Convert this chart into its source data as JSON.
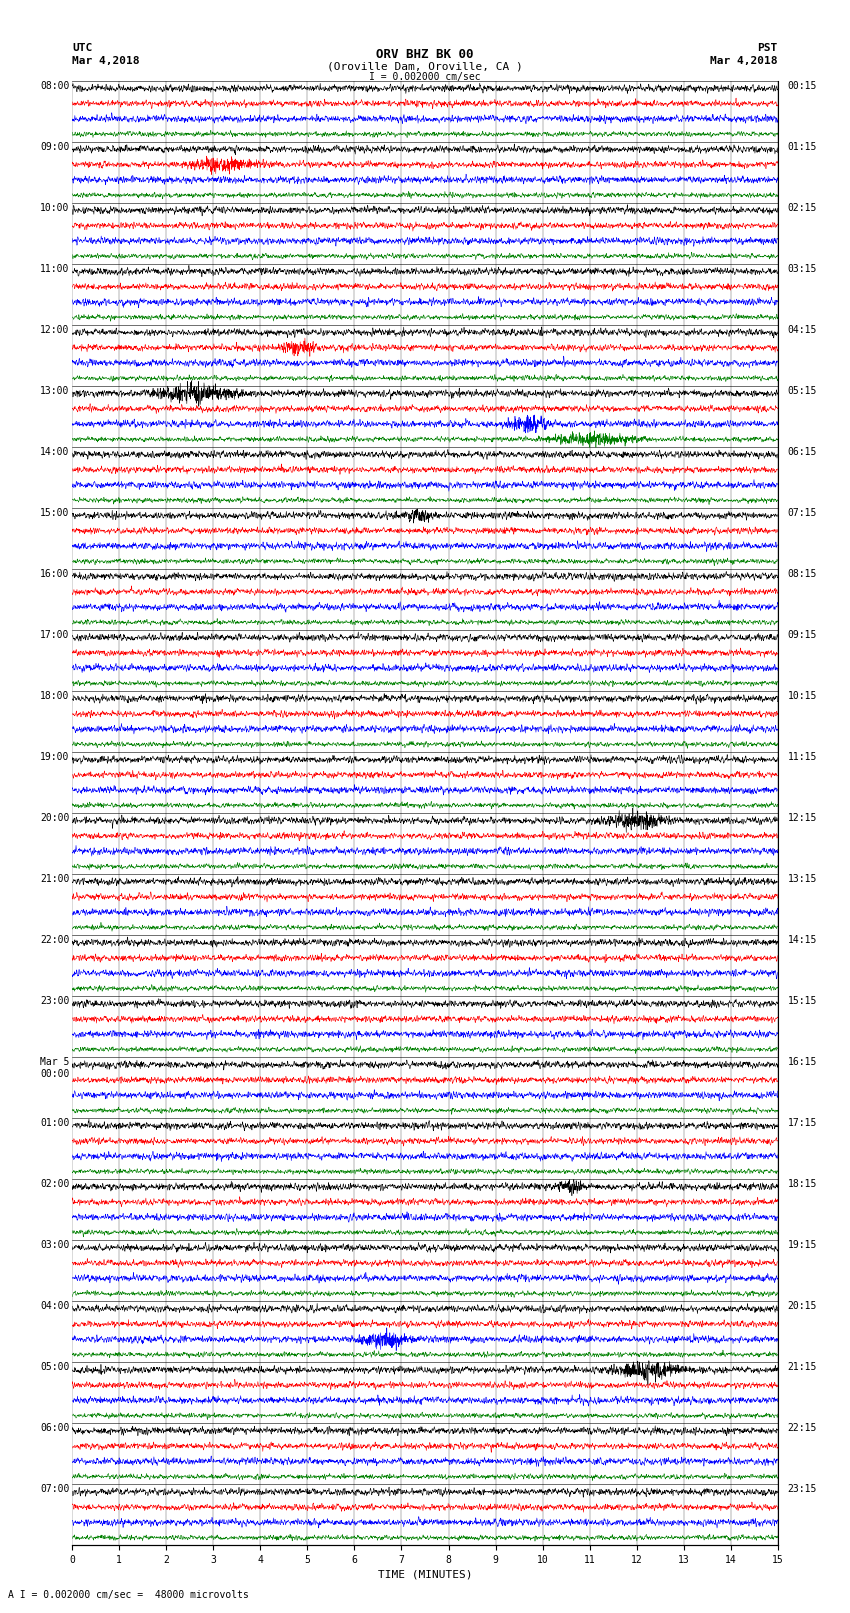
{
  "title_line1": "ORV BHZ BK 00",
  "title_line2": "(Oroville Dam, Oroville, CA )",
  "label_left": "UTC",
  "label_right": "PST",
  "date_left": "Mar 4,2018",
  "date_right": "Mar 4,2018",
  "scale_label": "I = 0.002000 cm/sec",
  "bottom_label": "A I = 0.002000 cm/sec =  48000 microvolts",
  "xlabel": "TIME (MINUTES)",
  "utc_times": [
    "08:00",
    "09:00",
    "10:00",
    "11:00",
    "12:00",
    "13:00",
    "14:00",
    "15:00",
    "16:00",
    "17:00",
    "18:00",
    "19:00",
    "20:00",
    "21:00",
    "22:00",
    "23:00",
    "Mar 5\n00:00",
    "01:00",
    "02:00",
    "03:00",
    "04:00",
    "05:00",
    "06:00",
    "07:00"
  ],
  "pst_times": [
    "00:15",
    "01:15",
    "02:15",
    "03:15",
    "04:15",
    "05:15",
    "06:15",
    "07:15",
    "08:15",
    "09:15",
    "10:15",
    "11:15",
    "12:15",
    "13:15",
    "14:15",
    "15:15",
    "16:15",
    "17:15",
    "18:15",
    "19:15",
    "20:15",
    "21:15",
    "22:15",
    "23:15"
  ],
  "num_hour_rows": 24,
  "traces_per_hour": 4,
  "colors": [
    "black",
    "red",
    "blue",
    "green"
  ],
  "fig_width": 8.5,
  "fig_height": 16.13,
  "bg_color": "white",
  "x_min": 0,
  "x_max": 15,
  "x_ticks": [
    0,
    1,
    2,
    3,
    4,
    5,
    6,
    7,
    8,
    9,
    10,
    11,
    12,
    13,
    14,
    15
  ],
  "font_size_title": 9,
  "font_size_labels": 7,
  "font_size_axis": 7,
  "dpi": 100
}
